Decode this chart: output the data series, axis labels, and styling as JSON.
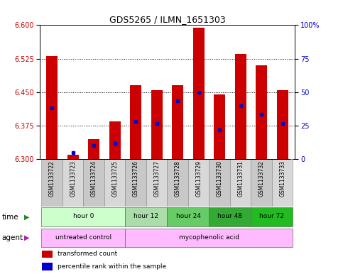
{
  "title": "GDS5265 / ILMN_1651303",
  "samples": [
    "GSM1133722",
    "GSM1133723",
    "GSM1133724",
    "GSM1133725",
    "GSM1133726",
    "GSM1133727",
    "GSM1133728",
    "GSM1133729",
    "GSM1133730",
    "GSM1133731",
    "GSM1133732",
    "GSM1133733"
  ],
  "bar_values": [
    6.53,
    6.31,
    6.345,
    6.385,
    6.465,
    6.455,
    6.465,
    6.595,
    6.445,
    6.535,
    6.51,
    6.455
  ],
  "percentile_values": [
    6.415,
    6.315,
    6.33,
    6.335,
    6.385,
    6.38,
    6.43,
    6.45,
    6.365,
    6.42,
    6.4,
    6.38
  ],
  "ylim_left": [
    6.3,
    6.6
  ],
  "ylim_right": [
    0,
    100
  ],
  "yticks_left": [
    6.3,
    6.375,
    6.45,
    6.525,
    6.6
  ],
  "yticks_right": [
    0,
    25,
    50,
    75,
    100
  ],
  "bar_color": "#cc0000",
  "percentile_color": "#0000cc",
  "bar_bottom": 6.3,
  "time_groups": [
    {
      "label": "hour 0",
      "start": 0,
      "end": 3,
      "color": "#ccffcc"
    },
    {
      "label": "hour 12",
      "start": 4,
      "end": 5,
      "color": "#aaddaa"
    },
    {
      "label": "hour 24",
      "start": 6,
      "end": 7,
      "color": "#66cc66"
    },
    {
      "label": "hour 48",
      "start": 8,
      "end": 9,
      "color": "#33aa33"
    },
    {
      "label": "hour 72",
      "start": 10,
      "end": 11,
      "color": "#22bb22"
    }
  ],
  "agent_groups": [
    {
      "label": "untreated control",
      "start": 0,
      "end": 3,
      "color": "#ffbbff"
    },
    {
      "label": "mycophenolic acid",
      "start": 4,
      "end": 11,
      "color": "#ffbbff"
    }
  ],
  "legend_items": [
    {
      "label": "transformed count",
      "color": "#cc0000"
    },
    {
      "label": "percentile rank within the sample",
      "color": "#0000cc"
    }
  ]
}
